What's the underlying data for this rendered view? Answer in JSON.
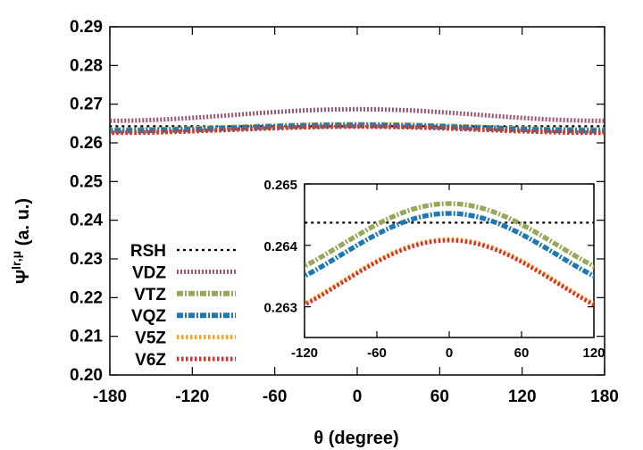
{
  "chart_data": [
    {
      "type": "line",
      "xlabel": "θ (degree)",
      "ylabel_main": "Ψ",
      "ylabel_sup": "lr,μ",
      "ylabel_rest": " (a. u.)",
      "xlim": [
        -180,
        180
      ],
      "ylim": [
        0.2,
        0.29
      ],
      "xticks": [
        "-180",
        "-120",
        "-60",
        "0",
        "60",
        "120",
        "180"
      ],
      "yticks": [
        "0.20",
        "0.21",
        "0.22",
        "0.23",
        "0.24",
        "0.25",
        "0.26",
        "0.27",
        "0.28",
        "0.29"
      ],
      "legend_position": "lower-left",
      "grid": false,
      "series": [
        {
          "name": "RSH",
          "color": "#000000",
          "style": "dotted",
          "mean": 0.2643,
          "amp": 0.0
        },
        {
          "name": "VDZ",
          "color": "#a15372",
          "style": "dashed",
          "mean": 0.2672,
          "amp": 0.0015
        },
        {
          "name": "VTZ",
          "color": "#97a85c",
          "style": "dashdot",
          "mean": 0.264,
          "amp": 0.0007
        },
        {
          "name": "VQZ",
          "color": "#1f78b4",
          "style": "dashdot",
          "mean": 0.2638,
          "amp": 0.0007
        },
        {
          "name": "V5Z",
          "color": "#ffa020",
          "style": "dotted",
          "mean": 0.2634,
          "amp": 0.0008
        },
        {
          "name": "V6Z",
          "color": "#d73027",
          "style": "dotted",
          "mean": 0.2634,
          "amp": 0.0008
        }
      ]
    },
    {
      "type": "line",
      "inset": true,
      "xlim": [
        -120,
        120
      ],
      "ylim": [
        0.2625,
        0.265
      ],
      "xticks": [
        "-120",
        "-60",
        "0",
        "60",
        "120"
      ],
      "yticks": [
        "0.263",
        "0.264",
        "0.265"
      ],
      "grid": false,
      "series": [
        {
          "name": "RSH",
          "color": "#000000",
          "style": "dotted",
          "mean": 0.26437,
          "amp": 0.0
        },
        {
          "name": "VTZ",
          "color": "#97a85c",
          "style": "dashdot",
          "mean": 0.264,
          "amp": 0.00068
        },
        {
          "name": "VQZ",
          "color": "#1f78b4",
          "style": "dashdot",
          "mean": 0.26384,
          "amp": 0.00068
        },
        {
          "name": "V5Z",
          "color": "#ffa020",
          "style": "dotted",
          "mean": 0.2634,
          "amp": 0.0007
        },
        {
          "name": "V6Z",
          "color": "#d73027",
          "style": "dotted",
          "mean": 0.26338,
          "amp": 0.0007
        }
      ]
    }
  ]
}
